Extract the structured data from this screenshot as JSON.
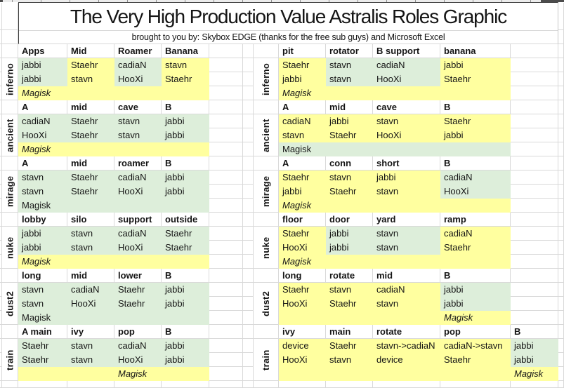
{
  "title": "The Very High Production Value Astralis Roles Graphic",
  "subtitle": "brought to you by: Skybox EDGE (thanks for the free sub guys) and Microsoft Excel",
  "colors": {
    "green": "#ddeeda",
    "yellow": "#ffff9f"
  },
  "blocks": [
    {
      "map": "inferno",
      "left": {
        "headers": [
          "Apps",
          "Mid",
          "Roamer",
          "Banana"
        ],
        "rows": [
          {
            "cells": [
              "jabbi",
              "Staehr",
              "cadiaN",
              "stavn"
            ],
            "fills": [
              "g",
              "y",
              "g",
              "y"
            ]
          },
          {
            "cells": [
              "jabbi",
              "stavn",
              "HooXi",
              "Staehr"
            ],
            "fills": [
              "g",
              "y",
              "g",
              "y"
            ]
          }
        ],
        "magisk": {
          "text": "Magisk",
          "col": 0,
          "italic": true,
          "fills": [
            "y",
            "y",
            "y",
            "y"
          ]
        }
      },
      "right": {
        "headers": [
          "pit",
          "rotator",
          "B support",
          "banana"
        ],
        "rows": [
          {
            "cells": [
              "Staehr",
              "stavn",
              "cadiaN",
              "jabbi"
            ],
            "fills": [
              "y",
              "g",
              "g",
              "y"
            ]
          },
          {
            "cells": [
              "jabbi",
              "stavn",
              "HooXi",
              "Staehr"
            ],
            "fills": [
              "y",
              "g",
              "g",
              "y"
            ]
          }
        ],
        "magisk": {
          "text": "Magisk",
          "col": 0,
          "italic": true,
          "fills": [
            "y",
            "y",
            "y",
            "y"
          ]
        }
      }
    },
    {
      "map": "ancient",
      "left": {
        "headers": [
          "A",
          "mid",
          "cave",
          "B"
        ],
        "rows": [
          {
            "cells": [
              "cadiaN",
              "Staehr",
              "stavn",
              "jabbi"
            ],
            "fills": [
              "g",
              "g",
              "g",
              "g"
            ]
          },
          {
            "cells": [
              "HooXi",
              "Staehr",
              "stavn",
              "jabbi"
            ],
            "fills": [
              "g",
              "g",
              "g",
              "g"
            ]
          }
        ],
        "magisk": {
          "text": "Magisk",
          "col": 0,
          "italic": true,
          "fills": [
            "y",
            "y",
            "y",
            "y"
          ]
        }
      },
      "right": {
        "headers": [
          "A",
          "mid",
          "cave",
          "B"
        ],
        "rows": [
          {
            "cells": [
              "cadiaN",
              "jabbi",
              "stavn",
              "Staehr"
            ],
            "fills": [
              "y",
              "y",
              "y",
              "y"
            ]
          },
          {
            "cells": [
              "stavn",
              "Staehr",
              "HooXi",
              "jabbi"
            ],
            "fills": [
              "y",
              "y",
              "y",
              "y"
            ]
          }
        ],
        "magisk": {
          "text": "Magisk",
          "col": 0,
          "italic": false,
          "fills": [
            "g",
            "g",
            "g",
            "g"
          ]
        }
      }
    },
    {
      "map": "mirage",
      "left": {
        "headers": [
          "A",
          "mid",
          "roamer",
          "B"
        ],
        "rows": [
          {
            "cells": [
              "stavn",
              "Staehr",
              "cadiaN",
              "jabbi"
            ],
            "fills": [
              "g",
              "g",
              "g",
              "g"
            ]
          },
          {
            "cells": [
              "stavn",
              "Staehr",
              "HooXi",
              "jabbi"
            ],
            "fills": [
              "g",
              "g",
              "g",
              "g"
            ]
          }
        ],
        "magisk": {
          "text": "Magisk",
          "col": 0,
          "italic": false,
          "fills": [
            "g",
            "g",
            "g",
            "g"
          ]
        }
      },
      "right": {
        "headers": [
          "A",
          "conn",
          "short",
          "B"
        ],
        "rows": [
          {
            "cells": [
              "Staehr",
              "stavn",
              "jabbi",
              "cadiaN"
            ],
            "fills": [
              "y",
              "y",
              "y",
              "g"
            ]
          },
          {
            "cells": [
              "jabbi",
              "Staehr",
              "stavn",
              "HooXi"
            ],
            "fills": [
              "y",
              "y",
              "y",
              "g"
            ]
          }
        ],
        "magisk": {
          "text": "Magisk",
          "col": 0,
          "italic": true,
          "fills": [
            "y",
            "y",
            "y",
            "y"
          ]
        }
      }
    },
    {
      "map": "nuke",
      "left": {
        "headers": [
          "lobby",
          "silo",
          "support",
          "outside"
        ],
        "rows": [
          {
            "cells": [
              "jabbi",
              "stavn",
              "cadiaN",
              "Staehr"
            ],
            "fills": [
              "g",
              "g",
              "g",
              "g"
            ]
          },
          {
            "cells": [
              "jabbi",
              "stavn",
              "HooXi",
              "Staehr"
            ],
            "fills": [
              "g",
              "g",
              "g",
              "g"
            ]
          }
        ],
        "magisk": {
          "text": "Magisk",
          "col": 0,
          "italic": true,
          "fills": [
            "y",
            "y",
            "y",
            "y"
          ]
        }
      },
      "right": {
        "headers": [
          "floor",
          "door",
          "yard",
          "ramp"
        ],
        "rows": [
          {
            "cells": [
              "Staehr",
              "jabbi",
              "stavn",
              "cadiaN"
            ],
            "fills": [
              "y",
              "g",
              "g",
              "y"
            ]
          },
          {
            "cells": [
              "HooXi",
              "jabbi",
              "stavn",
              "Staehr"
            ],
            "fills": [
              "y",
              "g",
              "g",
              "y"
            ]
          }
        ],
        "magisk": {
          "text": "Magisk",
          "col": 0,
          "italic": true,
          "fills": [
            "y",
            "y",
            "y",
            "y"
          ]
        }
      }
    },
    {
      "map": "dust2",
      "left": {
        "headers": [
          "long",
          "mid",
          "lower",
          "B"
        ],
        "rows": [
          {
            "cells": [
              "stavn",
              "cadiaN",
              "Staehr",
              "jabbi"
            ],
            "fills": [
              "g",
              "g",
              "g",
              "g"
            ]
          },
          {
            "cells": [
              "stavn",
              "HooXi",
              "Staehr",
              "jabbi"
            ],
            "fills": [
              "g",
              "g",
              "g",
              "g"
            ]
          }
        ],
        "magisk": {
          "text": "Magisk",
          "col": 0,
          "italic": false,
          "fills": [
            "g",
            "g",
            "g",
            "g"
          ]
        }
      },
      "right": {
        "headers": [
          "long",
          "rotate",
          "mid",
          "B"
        ],
        "rows": [
          {
            "cells": [
              "Staehr",
              "stavn",
              "cadiaN",
              "jabbi"
            ],
            "fills": [
              "y",
              "y",
              "y",
              "g"
            ]
          },
          {
            "cells": [
              "HooXi",
              "Staehr",
              "stavn",
              "jabbi"
            ],
            "fills": [
              "y",
              "y",
              "y",
              "g"
            ]
          }
        ],
        "magisk": {
          "text": "Magisk",
          "col": 3,
          "italic": true,
          "fills": [
            "y",
            "y",
            "y",
            "y"
          ]
        }
      }
    },
    {
      "map": "train",
      "left": {
        "headers": [
          "A main",
          "ivy",
          "pop",
          "B"
        ],
        "rows": [
          {
            "cells": [
              "Staehr",
              "stavn",
              "cadiaN",
              "jabbi"
            ],
            "fills": [
              "g",
              "g",
              "g",
              "g"
            ]
          },
          {
            "cells": [
              "Staehr",
              "stavn",
              "HooXi",
              "jabbi"
            ],
            "fills": [
              "g",
              "g",
              "g",
              "g"
            ]
          }
        ],
        "magisk": {
          "text": "Magisk",
          "col": 2,
          "italic": true,
          "fills": [
            "y",
            "y",
            "y",
            "y"
          ]
        }
      },
      "right": {
        "headers": [
          "ivy",
          "main",
          "rotate",
          "pop",
          "B"
        ],
        "rows": [
          {
            "cells": [
              "device",
              "Staehr",
              "stavn->cadiaN",
              "cadiaN->stavn",
              "jabbi"
            ],
            "fills": [
              "y",
              "y",
              "y",
              "y",
              "g"
            ]
          },
          {
            "cells": [
              "HooXi",
              "stavn",
              "device",
              "Staehr",
              "jabbi"
            ],
            "fills": [
              "y",
              "y",
              "y",
              "y",
              "g"
            ]
          }
        ],
        "magisk": {
          "text": "Magisk",
          "col": 4,
          "italic": true,
          "fills": [
            "y",
            "y",
            "y",
            "y",
            "y"
          ]
        }
      }
    }
  ]
}
